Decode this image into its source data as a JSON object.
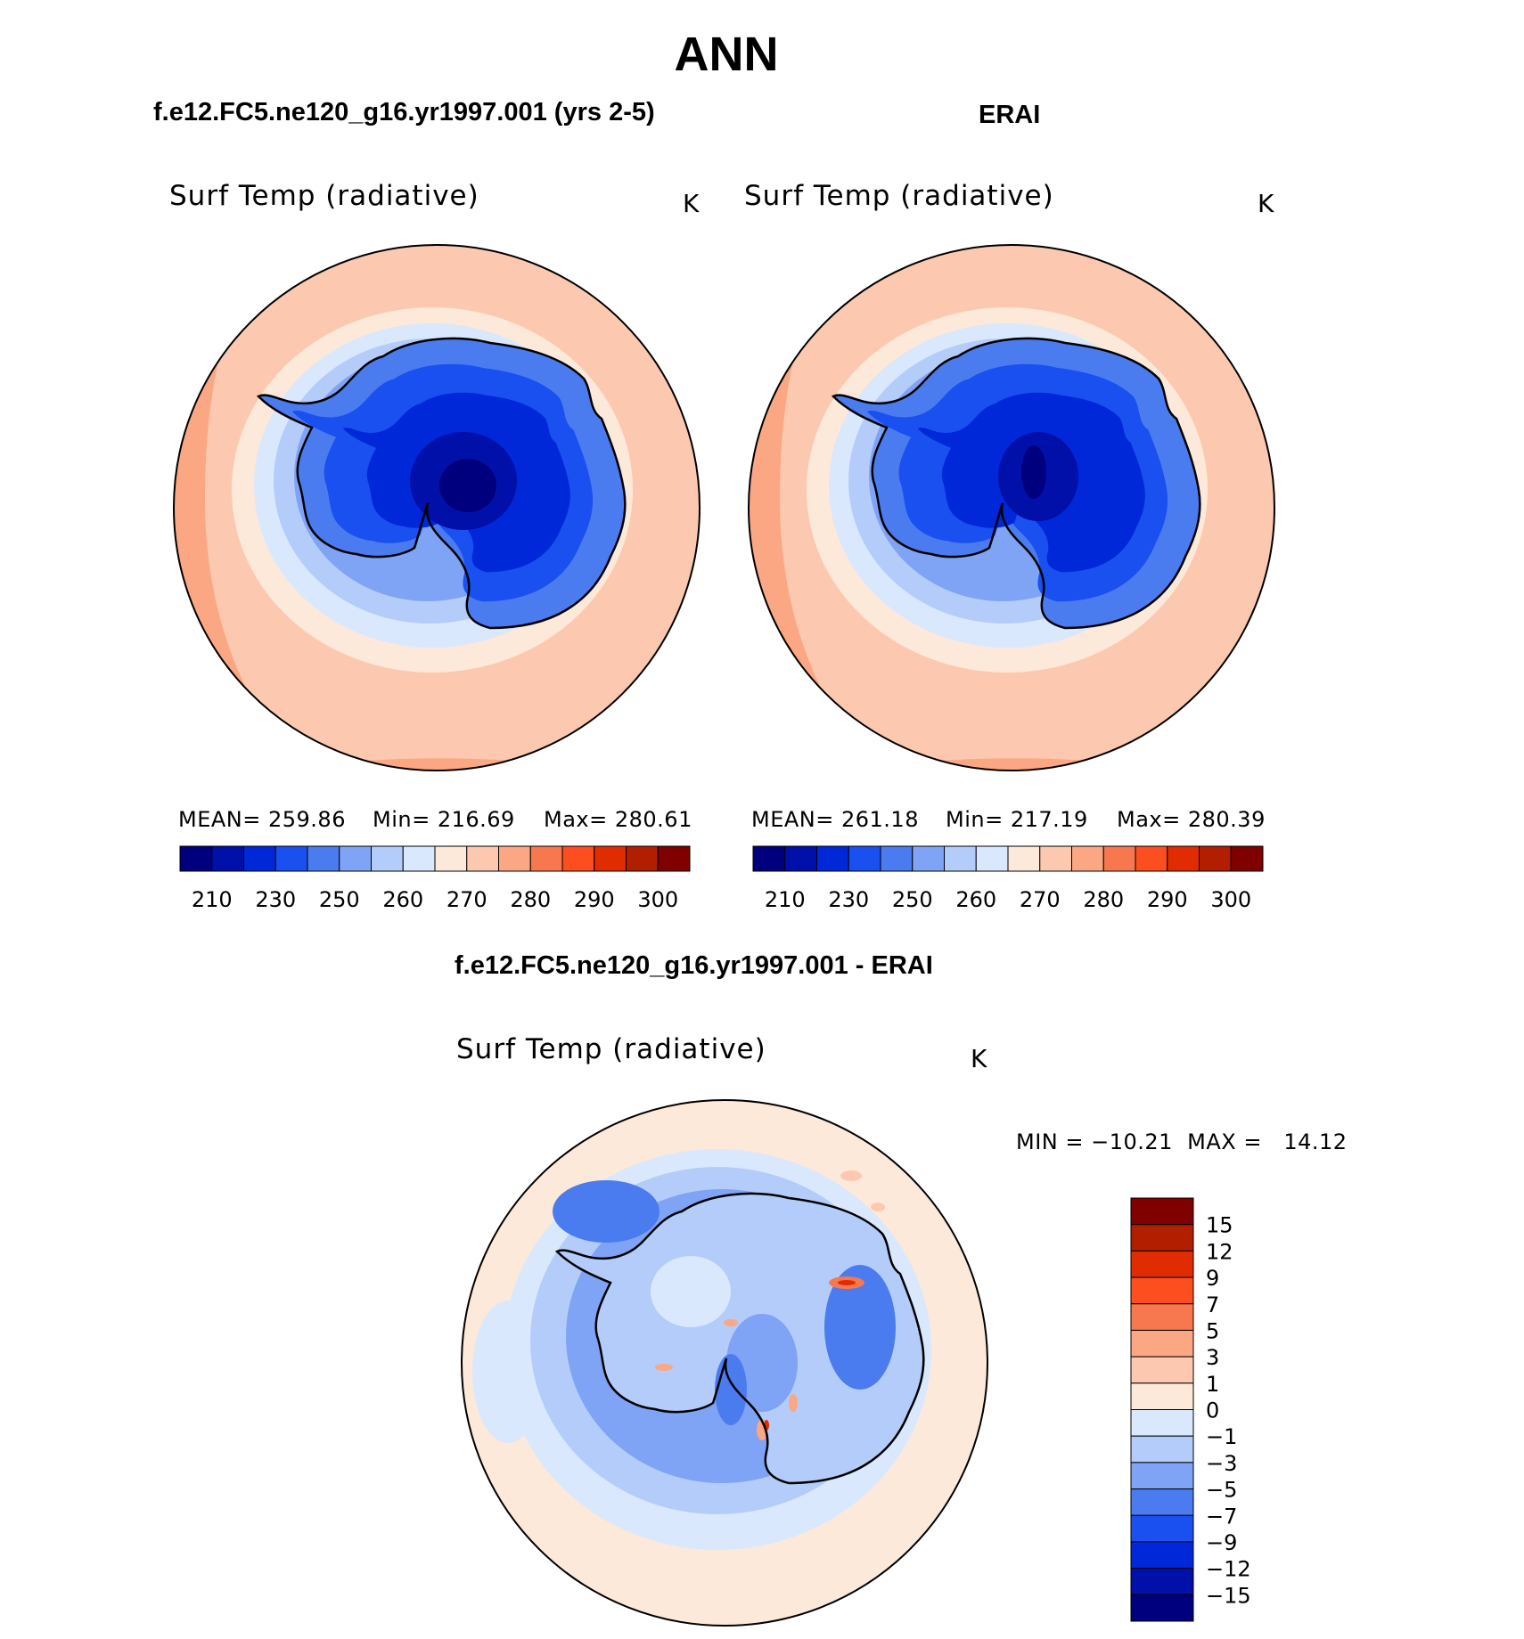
{
  "title": "ANN",
  "panels": {
    "model": {
      "case_title": "f.e12.FC5.ne120_g16.yr1997.001 (yrs 2-5)",
      "variable": "Surf Temp (radiative)",
      "units": "K",
      "stats": {
        "mean": "MEAN= 259.86",
        "min": "Min= 216.69",
        "max": "Max= 280.61"
      }
    },
    "obs": {
      "case_title": "ERAI",
      "variable": "Surf Temp (radiative)",
      "units": "K",
      "stats": {
        "mean": "MEAN= 261.18",
        "min": "Min= 217.19",
        "max": "Max= 280.39"
      }
    },
    "diff": {
      "case_title": "f.e12.FC5.ne120_g16.yr1997.001 - ERAI",
      "variable": "Surf Temp (radiative)",
      "units": "K",
      "stats": "MIN = −10.21  MAX =   14.12"
    }
  },
  "colorbar_abs": {
    "colors": [
      "#00007e",
      "#0010a8",
      "#0028d8",
      "#1a4ff0",
      "#4a7cf0",
      "#7fa3f5",
      "#b3ccfa",
      "#d9e8fc",
      "#fde9da",
      "#fcc9b0",
      "#fba784",
      "#f7784e",
      "#fc4e1e",
      "#e02c00",
      "#b21e00",
      "#800000"
    ],
    "labels": [
      "210",
      "230",
      "250",
      "260",
      "270",
      "280",
      "290",
      "300"
    ]
  },
  "colorbar_diff": {
    "colors": [
      "#800000",
      "#b21e00",
      "#e02c00",
      "#fc4e1e",
      "#f7784e",
      "#fba784",
      "#fcc9b0",
      "#fde9da",
      "#d9e8fc",
      "#b3ccfa",
      "#7fa3f5",
      "#4a7cf0",
      "#1a4ff0",
      "#0028d8",
      "#0010a8",
      "#00007e"
    ],
    "labels": [
      "15",
      "12",
      "9",
      "7",
      "5",
      "3",
      "1",
      "0",
      "−1",
      "−3",
      "−5",
      "−7",
      "−9",
      "−12",
      "−15"
    ]
  }
}
